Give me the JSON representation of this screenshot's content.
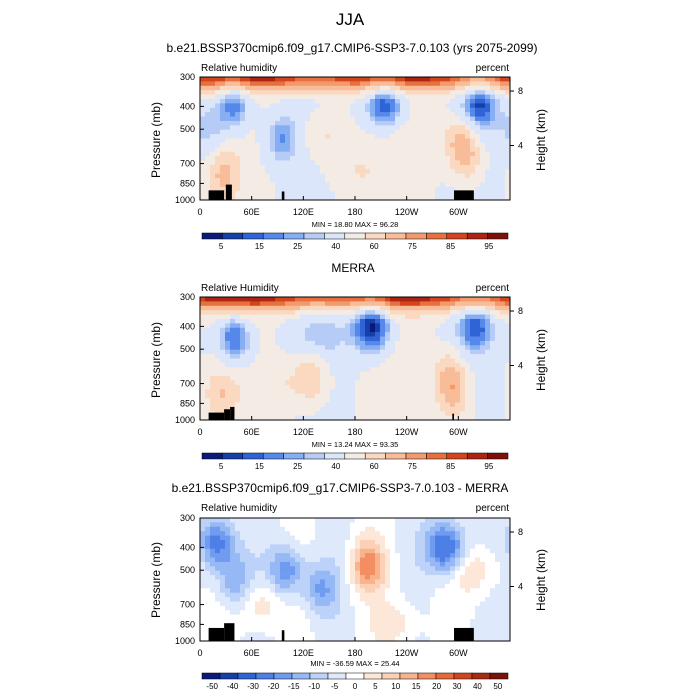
{
  "page_title": "JJA",
  "colors": {
    "rh_scale": [
      "#0a1a7a",
      "#163fa8",
      "#2f64d6",
      "#5588ea",
      "#86aef2",
      "#b6ccf6",
      "#dbe6fb",
      "#f4ece4",
      "#fbd8c0",
      "#f8bc98",
      "#f39a6c",
      "#e8703f",
      "#d2451f",
      "#ad2412",
      "#7f0f0a"
    ],
    "diff_scale": [
      "#0a1a7a",
      "#163fa8",
      "#2f64d6",
      "#4d7fe6",
      "#6f9bf0",
      "#96b8f5",
      "#bcd2f9",
      "#dfe9fc",
      "#ffffff",
      "#fde7d8",
      "#fbd0b4",
      "#f8b28c",
      "#f28e62",
      "#e56a3b",
      "#cf4520",
      "#a82a12",
      "#7a140b"
    ],
    "terrain": "#000000"
  },
  "chart_data": [
    {
      "type": "heatmap",
      "id": "model",
      "title": "b.e21.BSSP370cmip6.f09_g17.CMIP6-SSP3-7.0.103 (yrs 2075-2099)",
      "left_label": "Relative humidity",
      "right_label": "percent",
      "ylabel": "Pressure (mb)",
      "ylabel_right": "Height (km)",
      "y_ticks": [
        "300",
        "400",
        "500",
        "700",
        "850",
        "1000"
      ],
      "y_right_ticks": [
        "8",
        "4"
      ],
      "x_ticks": [
        "0",
        "60E",
        "120E",
        "180",
        "120W",
        "60W"
      ],
      "minmax": "MIN = 18.80  MAX = 96.28",
      "colorbar_labels": [
        "5",
        "15",
        "25",
        "40",
        "60",
        "75",
        "85",
        "95"
      ],
      "colorbar_style": "rh",
      "fields": [
        {
          "lon": 40,
          "p": 390,
          "v": -28,
          "s": 0.05
        },
        {
          "lon": 95,
          "p": 550,
          "v": -20,
          "s": 0.05
        },
        {
          "lon": 215,
          "p": 390,
          "v": -34,
          "s": 0.04
        },
        {
          "lon": 325,
          "p": 390,
          "v": -28,
          "s": 0.05
        },
        {
          "lon": 10,
          "p": 500,
          "v": -14,
          "s": 0.04
        },
        {
          "lon": 145,
          "p": 520,
          "v": 14,
          "s": 0.03
        },
        {
          "lon": 250,
          "p": 600,
          "v": 6,
          "s": 0.02
        },
        {
          "lon": 310,
          "p": 650,
          "v": 22,
          "s": 0.06
        },
        {
          "lon": 300,
          "p": 550,
          "v": 18,
          "s": 0.06
        },
        {
          "lon": 28,
          "p": 780,
          "v": 22,
          "s": 0.06
        },
        {
          "lon": 180,
          "p": 750,
          "v": 10,
          "s": 0.02
        }
      ],
      "terrain": [
        [
          10,
          28,
          910
        ],
        [
          30,
          37,
          860
        ],
        [
          95,
          98,
          920
        ],
        [
          295,
          318,
          910
        ]
      ]
    },
    {
      "type": "heatmap",
      "id": "obs",
      "title": "MERRA",
      "left_label": "Relative Humidity",
      "right_label": "percent",
      "ylabel": "Pressure (mb)",
      "ylabel_right": "Height (km)",
      "y_ticks": [
        "300",
        "400",
        "500",
        "700",
        "850",
        "1000"
      ],
      "y_right_ticks": [
        "8",
        "4"
      ],
      "x_ticks": [
        "0",
        "60E",
        "120E",
        "180",
        "120W",
        "60W"
      ],
      "minmax": "MIN = 13.24  MAX = 93.35",
      "colorbar_labels": [
        "5",
        "15",
        "25",
        "40",
        "60",
        "75",
        "85",
        "95"
      ],
      "colorbar_style": "rh",
      "fields": [
        {
          "lon": 40,
          "p": 450,
          "v": -30,
          "s": 0.05
        },
        {
          "lon": 200,
          "p": 400,
          "v": -40,
          "s": 0.04
        },
        {
          "lon": 320,
          "p": 400,
          "v": -25,
          "s": 0.05
        },
        {
          "lon": 140,
          "p": 450,
          "v": -10,
          "s": 0.02
        },
        {
          "lon": 130,
          "p": 650,
          "v": 22,
          "s": 0.06
        },
        {
          "lon": 100,
          "p": 700,
          "v": 10,
          "s": 0.03
        },
        {
          "lon": 25,
          "p": 780,
          "v": 18,
          "s": 0.05
        },
        {
          "lon": 290,
          "p": 650,
          "v": 22,
          "s": 0.06
        },
        {
          "lon": 295,
          "p": 800,
          "v": 18,
          "s": 0.05
        }
      ],
      "terrain": [
        [
          10,
          28,
          930
        ],
        [
          28,
          35,
          900
        ],
        [
          35,
          40,
          880
        ],
        [
          293,
          295,
          940
        ]
      ]
    },
    {
      "type": "heatmap",
      "id": "diff",
      "title": "b.e21.BSSP370cmip6.f09_g17.CMIP6-SSP3-7.0.103 - MERRA",
      "left_label": "Relative humidity",
      "right_label": "percent",
      "ylabel": "Pressure (mb)",
      "ylabel_right": "Height (km)",
      "y_ticks": [
        "300",
        "400",
        "500",
        "700",
        "850",
        "1000"
      ],
      "y_right_ticks": [
        "8",
        "4"
      ],
      "x_ticks": [
        "0",
        "60E",
        "120E",
        "180",
        "120W",
        "60W"
      ],
      "minmax": "MIN = -36.59  MAX = 25.44",
      "colorbar_labels": [
        "-50",
        "-40",
        "-30",
        "-20",
        "-15",
        "-10",
        "-5",
        "0",
        "5",
        "10",
        "15",
        "20",
        "30",
        "40",
        "50"
      ],
      "colorbar_style": "diff",
      "fields": [
        {
          "lon": 195,
          "p": 480,
          "v": 22,
          "s": 0.05
        },
        {
          "lon": 70,
          "p": 700,
          "v": 10,
          "s": 0.04
        },
        {
          "lon": 285,
          "p": 400,
          "v": -30,
          "s": 0.04
        },
        {
          "lon": 20,
          "p": 380,
          "v": -25,
          "s": 0.05
        },
        {
          "lon": 100,
          "p": 500,
          "v": -20,
          "s": 0.05
        },
        {
          "lon": 140,
          "p": 600,
          "v": -15,
          "s": 0.05
        },
        {
          "lon": 320,
          "p": 500,
          "v": 10,
          "s": 0.03
        },
        {
          "lon": 230,
          "p": 850,
          "v": 8,
          "s": 0.03
        },
        {
          "lon": 40,
          "p": 550,
          "v": -15,
          "s": 0.05
        }
      ],
      "terrain": [
        [
          10,
          28,
          880
        ],
        [
          28,
          40,
          840
        ],
        [
          95,
          98,
          900
        ],
        [
          295,
          318,
          880
        ]
      ]
    }
  ]
}
